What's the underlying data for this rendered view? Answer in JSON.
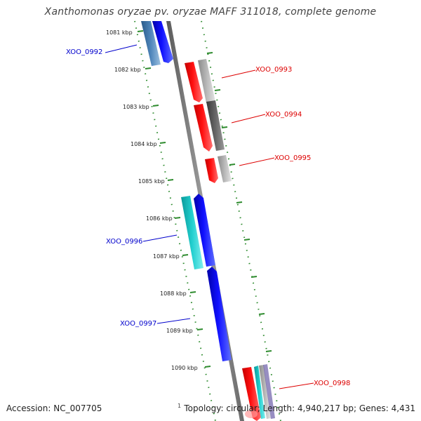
{
  "header": {
    "title": "Xanthomonas oryzae pv. oryzae MAFF 311018, complete genome"
  },
  "footer": {
    "accession": "Accession: NC_007705",
    "topology": "Topology: circular; Length: 4,940,217 bp; Genes: 4,431",
    "topology_mark": "1"
  },
  "colors": {
    "forward": "#ff0000",
    "reverse": "#0000ff",
    "cyan": "#1fc8c8",
    "steel": "#4a7fb5",
    "grey": "#a9a9a9",
    "dark_grey": "#606060",
    "ticks": "#2e8b2e",
    "backbone": "#7f7f7f"
  },
  "ruler": [
    "1081 kbp",
    "1082 kbp",
    "1083 kbp",
    "1084 kbp",
    "1085 kbp",
    "1086 kbp",
    "1087 kbp",
    "1088 kbp",
    "1089 kbp",
    "1090 kbp"
  ],
  "genes": [
    {
      "name": "XOO_0992",
      "strand": "reverse"
    },
    {
      "name": "XOO_0993",
      "strand": "forward"
    },
    {
      "name": "XOO_0994",
      "strand": "forward"
    },
    {
      "name": "XOO_0995",
      "strand": "forward"
    },
    {
      "name": "XOO_0996",
      "strand": "reverse"
    },
    {
      "name": "XOO_0997",
      "strand": "reverse"
    },
    {
      "name": "XOO_0998",
      "strand": "forward"
    }
  ]
}
